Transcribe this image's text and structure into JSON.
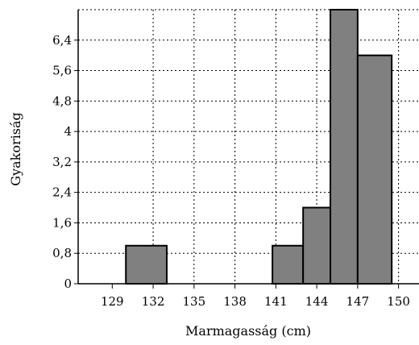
{
  "chart_data": {
    "type": "bar",
    "title": "",
    "xlabel": "Marmagasság (cm)",
    "ylabel": "Gyakoriság",
    "xlim": [
      126.5,
      151.5
    ],
    "ylim": [
      0,
      7.2
    ],
    "x_ticks": [
      "129",
      "132",
      "135",
      "138",
      "141",
      "144",
      "147",
      "150"
    ],
    "x_tick_values": [
      129,
      132,
      135,
      138,
      141,
      144,
      147,
      150
    ],
    "y_ticks": [
      "0",
      "0,8",
      "1,6",
      "2,4",
      "3,2",
      "4",
      "4,8",
      "5,6",
      "6,4"
    ],
    "y_tick_values": [
      0,
      0.8,
      1.6,
      2.4,
      3.2,
      4,
      4.8,
      5.6,
      6.4
    ],
    "bins": [
      {
        "start": 130.0,
        "end": 133.0,
        "value": 1
      },
      {
        "start": 140.75,
        "end": 143.0,
        "value": 1
      },
      {
        "start": 143.0,
        "end": 145.0,
        "value": 2
      },
      {
        "start": 145.0,
        "end": 147.0,
        "value": 7.2
      },
      {
        "start": 147.0,
        "end": 149.5,
        "value": 6
      }
    ],
    "grid": true,
    "colors": {
      "bar_fill": "#808080",
      "bar_stroke": "#000000",
      "grid": "#000000"
    }
  }
}
